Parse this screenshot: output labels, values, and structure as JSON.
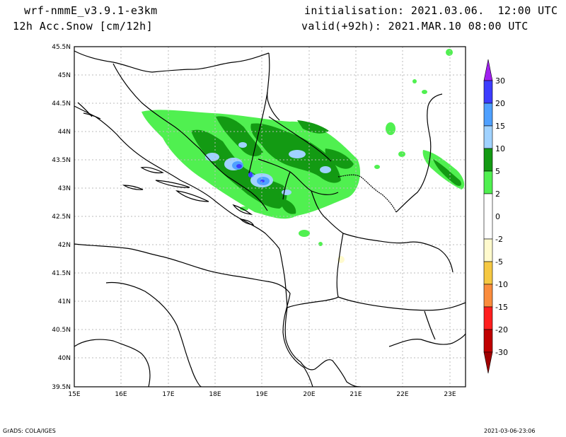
{
  "header": {
    "model": "wrf-nmmE_v3.9.1-e3km",
    "field": "12h Acc.Snow [cm/12h]",
    "init": "initialisation: 2021.03.06.  12:00 UTC",
    "valid": "valid(+92h): 2021.MAR.10 08:00 UTC"
  },
  "axes": {
    "lat_labels": [
      "45.5N",
      "45N",
      "44.5N",
      "44N",
      "43.5N",
      "43N",
      "42.5N",
      "42N",
      "41.5N",
      "41N",
      "40.5N",
      "40N",
      "39.5N"
    ],
    "lon_labels": [
      "15E",
      "16E",
      "17E",
      "18E",
      "19E",
      "20E",
      "21E",
      "22E",
      "23E"
    ]
  },
  "colorbar": {
    "labels": [
      "30",
      "20",
      "15",
      "10",
      "5",
      "2",
      "0",
      "-2",
      "-5",
      "-10",
      "-15",
      "-20",
      "-30"
    ],
    "colors": [
      "#a020f0",
      "#3c3cff",
      "#4fa0ff",
      "#a0d2ff",
      "#139a13",
      "#50f050",
      "#ffffff",
      "#fffacd",
      "#f5c842",
      "#fa8c3c",
      "#ff1e1e",
      "#c00000",
      "#a00000"
    ]
  },
  "footer": {
    "left": "GrADS: COLA/IGES",
    "right": "2021-03-06-23:06"
  }
}
